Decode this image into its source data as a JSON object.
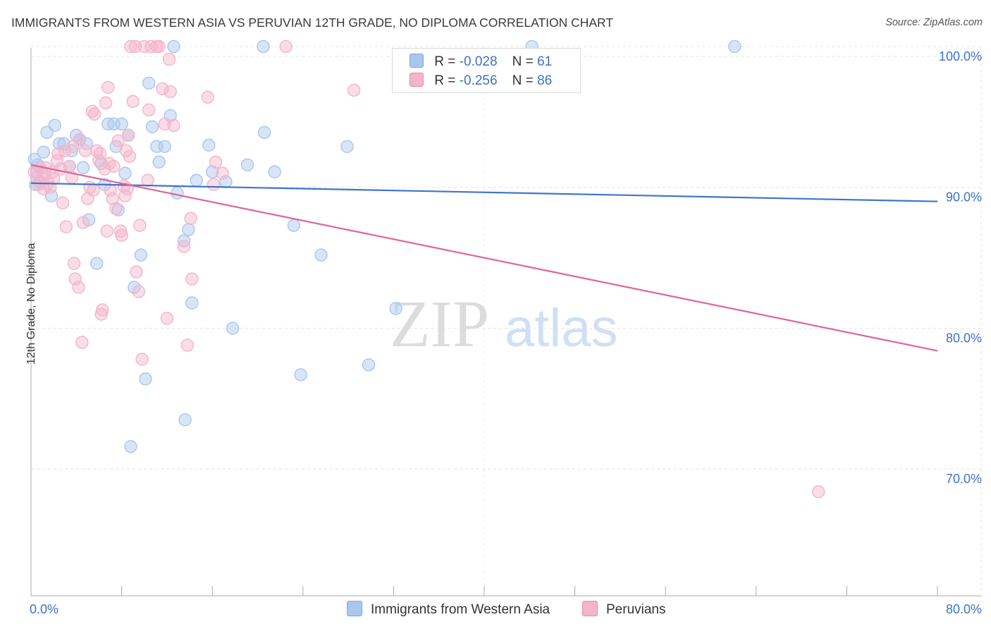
{
  "title": "IMMIGRANTS FROM WESTERN ASIA VS PERUVIAN 12TH GRADE, NO DIPLOMA CORRELATION CHART",
  "source": "Source: ZipAtlas.com",
  "watermark": {
    "zip": "ZIP",
    "atlas": "atlas"
  },
  "legend": {
    "r_label": "R =",
    "n_label": "N =",
    "rows": [
      {
        "r": "-0.028",
        "n": "61",
        "color": "#a9c6ee"
      },
      {
        "r": "-0.256",
        "n": "86",
        "color": "#f4b4c9"
      }
    ]
  },
  "chart_data": {
    "type": "scatter",
    "title": "IMMIGRANTS FROM WESTERN ASIA VS PERUVIAN 12TH GRADE, NO DIPLOMA CORRELATION CHART",
    "xlabel": "",
    "ylabel": "12th Grade, No Diploma",
    "xlim": [
      0,
      80
    ],
    "ylim": [
      61,
      101
    ],
    "x_tick_labels": [
      "0.0%",
      "80.0%"
    ],
    "y_ticks": [
      {
        "value": 70,
        "label": "70.0%"
      },
      {
        "value": 80,
        "label": "80.0%"
      },
      {
        "value": 90,
        "label": "90.0%"
      },
      {
        "value": 100,
        "label": "100.0%"
      }
    ],
    "grid": true,
    "series": [
      {
        "name": "Immigrants from Western Asia",
        "color": "#3d76cc",
        "fill": "#a9c6ee",
        "R": -0.028,
        "N": 61,
        "trend": {
          "x0": 0,
          "y0": 90.3,
          "x1": 80,
          "y1": 89.0
        },
        "points": [
          [
            0.3,
            92
          ],
          [
            0.6,
            91.6
          ],
          [
            0.5,
            91.1
          ],
          [
            0.8,
            90.4
          ],
          [
            0.4,
            90.2
          ],
          [
            1.1,
            92.5
          ],
          [
            1.4,
            93.9
          ],
          [
            2.1,
            94.4
          ],
          [
            2.5,
            93.1
          ],
          [
            1.8,
            89.4
          ],
          [
            2.9,
            93.1
          ],
          [
            3.4,
            91.5
          ],
          [
            3.6,
            92.6
          ],
          [
            4.0,
            93.7
          ],
          [
            4.3,
            93.4
          ],
          [
            4.6,
            91.4
          ],
          [
            4.9,
            93.1
          ],
          [
            5.1,
            87.7
          ],
          [
            5.8,
            84.6
          ],
          [
            6.2,
            91.7
          ],
          [
            6.5,
            90.2
          ],
          [
            6.8,
            94.5
          ],
          [
            7.3,
            94.5
          ],
          [
            7.5,
            92.9
          ],
          [
            7.7,
            88.4
          ],
          [
            8.0,
            94.5
          ],
          [
            8.3,
            91.0
          ],
          [
            8.6,
            93.7
          ],
          [
            8.8,
            71.6
          ],
          [
            9.1,
            82.9
          ],
          [
            9.7,
            85.2
          ],
          [
            10.1,
            76.4
          ],
          [
            10.4,
            97.4
          ],
          [
            10.7,
            94.3
          ],
          [
            11.1,
            92.9
          ],
          [
            11.3,
            91.8
          ],
          [
            11.8,
            92.9
          ],
          [
            12.3,
            95.1
          ],
          [
            12.6,
            100
          ],
          [
            12.9,
            89.6
          ],
          [
            13.5,
            86.2
          ],
          [
            13.6,
            73.5
          ],
          [
            13.9,
            87.0
          ],
          [
            14.2,
            81.8
          ],
          [
            14.6,
            90.5
          ],
          [
            15.7,
            93.0
          ],
          [
            16.0,
            91.1
          ],
          [
            17.2,
            90.4
          ],
          [
            17.8,
            80.0
          ],
          [
            19.1,
            91.6
          ],
          [
            20.5,
            100
          ],
          [
            20.6,
            93.9
          ],
          [
            21.5,
            91.1
          ],
          [
            23.2,
            87.3
          ],
          [
            23.8,
            76.7
          ],
          [
            25.6,
            85.2
          ],
          [
            27.9,
            92.9
          ],
          [
            29.8,
            77.4
          ],
          [
            32.2,
            81.4
          ],
          [
            44.2,
            100
          ],
          [
            62.1,
            100
          ]
        ]
      },
      {
        "name": "Peruvians",
        "color": "#e0649a",
        "fill": "#f4b4c9",
        "R": -0.256,
        "N": 86,
        "trend": {
          "x0": 0,
          "y0": 91.6,
          "x1": 80,
          "y1": 78.4
        },
        "points": [
          [
            0.3,
            91.1
          ],
          [
            0.5,
            90.7
          ],
          [
            0.7,
            90.2
          ],
          [
            0.8,
            91.4
          ],
          [
            1.0,
            90.6
          ],
          [
            1.1,
            89.9
          ],
          [
            1.2,
            90.9
          ],
          [
            1.3,
            91.4
          ],
          [
            1.5,
            90.3
          ],
          [
            1.7,
            90.0
          ],
          [
            1.9,
            91.1
          ],
          [
            2.0,
            90.6
          ],
          [
            2.3,
            91.9
          ],
          [
            2.4,
            92.4
          ],
          [
            2.6,
            91.3
          ],
          [
            2.8,
            88.9
          ],
          [
            3.0,
            92.6
          ],
          [
            3.1,
            87.2
          ],
          [
            3.4,
            91.5
          ],
          [
            3.6,
            90.7
          ],
          [
            3.7,
            92.9
          ],
          [
            3.8,
            84.6
          ],
          [
            3.9,
            83.5
          ],
          [
            4.2,
            82.9
          ],
          [
            4.3,
            93.4
          ],
          [
            4.5,
            79.0
          ],
          [
            4.6,
            87.5
          ],
          [
            4.8,
            92.6
          ],
          [
            5.0,
            89.2
          ],
          [
            5.2,
            90.0
          ],
          [
            5.4,
            95.4
          ],
          [
            5.5,
            89.8
          ],
          [
            5.6,
            95.2
          ],
          [
            5.8,
            92.6
          ],
          [
            6.0,
            91.9
          ],
          [
            6.1,
            92.4
          ],
          [
            6.2,
            81.0
          ],
          [
            6.3,
            81.3
          ],
          [
            6.5,
            91.3
          ],
          [
            6.6,
            96.0
          ],
          [
            6.7,
            86.9
          ],
          [
            6.8,
            97.1
          ],
          [
            6.9,
            91.7
          ],
          [
            7.0,
            89.8
          ],
          [
            7.2,
            89.2
          ],
          [
            7.3,
            91.5
          ],
          [
            7.5,
            88.5
          ],
          [
            7.7,
            93.3
          ],
          [
            7.9,
            86.9
          ],
          [
            8.0,
            86.6
          ],
          [
            8.2,
            90.1
          ],
          [
            8.3,
            89.4
          ],
          [
            8.4,
            92.6
          ],
          [
            8.5,
            89.9
          ],
          [
            8.6,
            93.7
          ],
          [
            8.7,
            92.2
          ],
          [
            8.8,
            100
          ],
          [
            9.0,
            96.1
          ],
          [
            9.2,
            100
          ],
          [
            9.3,
            84.0
          ],
          [
            9.5,
            82.6
          ],
          [
            9.6,
            87.3
          ],
          [
            9.8,
            77.8
          ],
          [
            10.0,
            100
          ],
          [
            10.3,
            90.5
          ],
          [
            10.4,
            95.5
          ],
          [
            10.6,
            100
          ],
          [
            11.1,
            100
          ],
          [
            11.3,
            100
          ],
          [
            11.6,
            97.0
          ],
          [
            11.8,
            94.5
          ],
          [
            12.0,
            80.7
          ],
          [
            12.2,
            99.1
          ],
          [
            12.3,
            96.8
          ],
          [
            12.6,
            94.4
          ],
          [
            13.5,
            85.8
          ],
          [
            13.8,
            78.8
          ],
          [
            14.1,
            87.8
          ],
          [
            14.2,
            83.5
          ],
          [
            15.6,
            96.4
          ],
          [
            16.1,
            90.2
          ],
          [
            16.3,
            91.8
          ],
          [
            16.9,
            91.0
          ],
          [
            22.5,
            100
          ],
          [
            28.5,
            96.9
          ],
          [
            69.5,
            68.4
          ]
        ]
      }
    ]
  }
}
